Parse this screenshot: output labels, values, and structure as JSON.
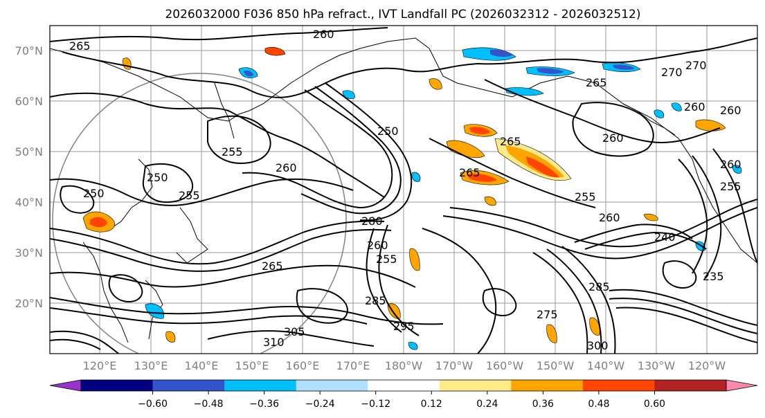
{
  "title": "2026032000 F036 850 hPa refract., IVT Landfall PC (2026032312 - 2026032512)",
  "map": {
    "lon_labels": [
      "120°E",
      "130°E",
      "140°E",
      "150°E",
      "160°E",
      "170°E",
      "180°W",
      "170°W",
      "160°W",
      "150°W",
      "140°W",
      "130°W",
      "120°W"
    ],
    "lat_labels": [
      "70°N",
      "60°N",
      "50°N",
      "40°N",
      "30°N",
      "20°N"
    ],
    "contour_labels": [
      "260",
      "265",
      "270",
      "270",
      "265",
      "260",
      "260",
      "260",
      "265",
      "265",
      "255",
      "250",
      "260",
      "250",
      "255",
      "250",
      "255",
      "260",
      "280",
      "260",
      "255",
      "265",
      "285",
      "295",
      "310",
      "305",
      "285",
      "275",
      "300",
      "240",
      "235",
      "255",
      "260"
    ]
  },
  "colorbar": {
    "ticks": [
      "−0.60",
      "−0.48",
      "−0.36",
      "−0.24",
      "−0.12",
      "0.12",
      "0.24",
      "0.36",
      "0.48",
      "0.60"
    ],
    "colors": [
      "#9933cc",
      "#000080",
      "#3355cc",
      "#00bfff",
      "#b0e0ff",
      "#ffffff",
      "#ffeb8a",
      "#ffa500",
      "#ff4500",
      "#b22222",
      "#ff88aa"
    ]
  }
}
